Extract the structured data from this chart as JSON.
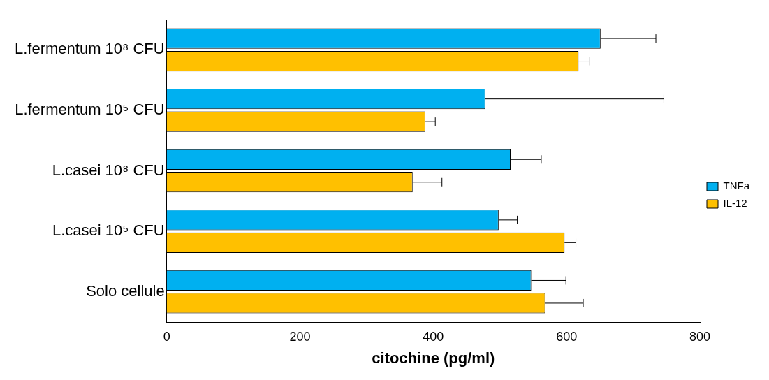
{
  "chart_data": {
    "type": "bar",
    "orientation": "horizontal",
    "xlabel": "citochine (pg/ml)",
    "categories": [
      "L.fermentum 10⁸ CFU",
      "L.fermentum 10⁵ CFU",
      "L.casei 10⁸ CFU",
      "L.casei 10⁵ CFU",
      "Solo cellule"
    ],
    "series": [
      {
        "name": "TNFa",
        "color": "#00b0f0",
        "values": [
          651,
          478,
          516,
          498,
          547
        ],
        "errors": [
          [
            651,
            734
          ],
          [
            478,
            746
          ],
          [
            516,
            562
          ],
          [
            498,
            526
          ],
          [
            547,
            599
          ]
        ]
      },
      {
        "name": "IL-12",
        "color": "#ffc000",
        "values": [
          618,
          388,
          369,
          597,
          568
        ],
        "errors": [
          [
            618,
            634
          ],
          [
            388,
            403
          ],
          [
            369,
            413
          ],
          [
            597,
            614
          ],
          [
            568,
            625
          ]
        ]
      }
    ],
    "xlim": [
      0,
      800
    ],
    "xticks": [
      0,
      200,
      400,
      600,
      800
    ],
    "grid": false,
    "legend": "right"
  }
}
